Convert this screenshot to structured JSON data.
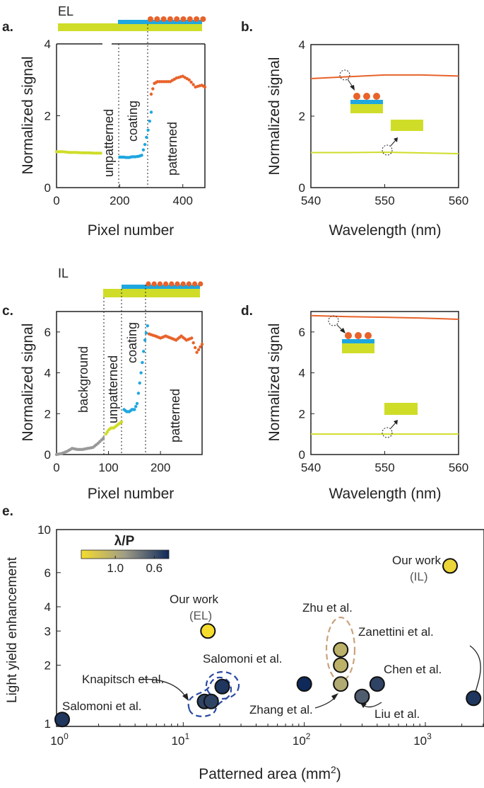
{
  "chart_data": [
    {
      "panel": "a.",
      "type": "scatter",
      "inset_label": "EL",
      "xlabel": "Pixel number",
      "ylabel": "Normalized signal",
      "xlim": [
        0,
        470
      ],
      "ylim": [
        0,
        4
      ],
      "xticks": [
        "0",
        "200",
        "400"
      ],
      "yticks": [
        "0",
        "2",
        "4"
      ],
      "regions": [
        "unpatterned",
        "coating",
        "patterned"
      ],
      "boundaries": [
        200,
        300
      ],
      "series": [
        {
          "name": "unpatterned",
          "color": "#cfdd29",
          "x": [
            0,
            20,
            40,
            60,
            80,
            100,
            120,
            140
          ],
          "y": [
            1.0,
            1.0,
            0.98,
            0.98,
            0.97,
            0.97,
            0.96,
            0.96
          ]
        },
        {
          "name": "coating",
          "color": "#1fa7df",
          "x": [
            200,
            210,
            220,
            230,
            240,
            250,
            260,
            270,
            280,
            290,
            300
          ],
          "y": [
            0.85,
            0.85,
            0.84,
            0.84,
            0.86,
            0.86,
            0.87,
            0.9,
            1.2,
            1.6,
            2.1
          ]
        },
        {
          "name": "patterned",
          "color": "#e8622a",
          "x": [
            300,
            310,
            320,
            340,
            360,
            380,
            400,
            420,
            440,
            460,
            470
          ],
          "y": [
            2.6,
            2.9,
            2.95,
            2.95,
            2.95,
            3.05,
            3.1,
            3.0,
            2.8,
            2.85,
            2.8
          ]
        }
      ]
    },
    {
      "panel": "b.",
      "type": "line",
      "xlabel": "Wavelength (nm)",
      "ylabel": "Normalized signal",
      "xlim": [
        540,
        560
      ],
      "ylim": [
        0,
        4
      ],
      "xticks": [
        "540",
        "550",
        "560"
      ],
      "yticks": [
        "0",
        "2",
        "4"
      ],
      "series": [
        {
          "name": "patterned",
          "color": "#e8622a",
          "x": [
            540,
            545,
            550,
            555,
            560
          ],
          "y": [
            3.05,
            3.1,
            3.15,
            3.15,
            3.12
          ]
        },
        {
          "name": "unpatterned",
          "color": "#cfdd29",
          "x": [
            540,
            545,
            550,
            555,
            560
          ],
          "y": [
            0.98,
            0.98,
            0.99,
            0.97,
            0.95
          ]
        }
      ]
    },
    {
      "panel": "c.",
      "type": "scatter",
      "inset_label": "IL",
      "xlabel": "Pixel number",
      "ylabel": "Normalized signal",
      "xlim": [
        0,
        280
      ],
      "ylim": [
        0,
        7
      ],
      "xticks": [
        "0",
        "100",
        "200"
      ],
      "yticks": [
        "0",
        "2",
        "4",
        "6"
      ],
      "regions": [
        "background",
        "unpatterned",
        "coating",
        "patterned"
      ],
      "boundaries": [
        93,
        127,
        175
      ],
      "series": [
        {
          "name": "background",
          "color": "#999999",
          "x": [
            0,
            10,
            20,
            30,
            40,
            50,
            60,
            70,
            80,
            90
          ],
          "y": [
            0.0,
            0.05,
            0.15,
            0.3,
            0.25,
            0.25,
            0.3,
            0.35,
            0.55,
            0.8
          ]
        },
        {
          "name": "unpatterned",
          "color": "#cfdd29",
          "x": [
            95,
            100,
            105,
            110,
            115,
            120,
            125
          ],
          "y": [
            1.0,
            1.2,
            1.3,
            1.3,
            1.4,
            1.5,
            1.6
          ]
        },
        {
          "name": "coating",
          "color": "#1fa7df",
          "x": [
            130,
            135,
            140,
            145,
            150,
            155,
            160,
            165,
            170,
            175
          ],
          "y": [
            2.2,
            2.1,
            2.1,
            2.2,
            2.2,
            2.5,
            3.5,
            4.5,
            5.6,
            6.3
          ]
        },
        {
          "name": "patterned",
          "color": "#e8622a",
          "x": [
            178,
            190,
            200,
            210,
            220,
            230,
            240,
            250,
            260,
            270,
            280
          ],
          "y": [
            5.9,
            5.8,
            5.7,
            5.8,
            5.7,
            5.6,
            5.8,
            5.6,
            5.7,
            5.0,
            5.4
          ]
        }
      ]
    },
    {
      "panel": "d.",
      "type": "line",
      "xlabel": "Wavelength (nm)",
      "ylabel": "Normalized signal",
      "xlim": [
        540,
        560
      ],
      "ylim": [
        0,
        7
      ],
      "xticks": [
        "540",
        "550",
        "560"
      ],
      "yticks": [
        "0",
        "2",
        "4",
        "6"
      ],
      "series": [
        {
          "name": "patterned",
          "color": "#e8622a",
          "x": [
            540,
            545,
            550,
            555,
            560
          ],
          "y": [
            6.8,
            6.75,
            6.72,
            6.68,
            6.62
          ]
        },
        {
          "name": "unpatterned",
          "color": "#cfdd29",
          "x": [
            540,
            545,
            550,
            555,
            560
          ],
          "y": [
            1.0,
            1.0,
            1.0,
            1.0,
            1.0
          ]
        }
      ]
    },
    {
      "panel": "e.",
      "type": "scatter",
      "xscale": "log",
      "yscale": "log",
      "xlabel": "Patterned area (mm",
      "xlabel_sup": "2",
      "xlabel_close": ")",
      "ylabel": "Light yield enhancement",
      "xlim": [
        1,
        3000
      ],
      "ylim": [
        1,
        10
      ],
      "xticks_base": [
        "10",
        "10",
        "10",
        "10"
      ],
      "xticks_exp": [
        "0",
        "1",
        "2",
        "3"
      ],
      "xtick_values": [
        1,
        10,
        100,
        1000
      ],
      "yticks": [
        "1",
        "2",
        "3",
        "4",
        "6",
        "10"
      ],
      "ytick_values": [
        1,
        2,
        3,
        4,
        6,
        10
      ],
      "colorbar": {
        "title": "λ/P",
        "ticks": [
          "1.0",
          "0.6"
        ],
        "tick_values": [
          1.0,
          0.6
        ],
        "range": [
          1.35,
          0.45
        ],
        "stops": [
          "#f5dc2e",
          "#9f9c87",
          "#0f2a5a"
        ]
      },
      "points": [
        {
          "label": "Salomoni et al.",
          "x": 1.0,
          "y": 1.05,
          "lp": 0.5
        },
        {
          "label": "Knapitsch et al.",
          "x": 15,
          "y": 1.3,
          "lp": 0.55
        },
        {
          "label": "Knapitsch et al.",
          "x": 17,
          "y": 1.3,
          "lp": 0.55
        },
        {
          "label": "Knapitsch et al.",
          "x": 21,
          "y": 1.55,
          "lp": 0.5
        },
        {
          "label": "Our work (EL)",
          "x": 16,
          "y": 3.0,
          "lp": 1.35
        },
        {
          "label": "Salomoni et al.",
          "x": 100,
          "y": 1.6,
          "lp": 0.45
        },
        {
          "label": "Zhu et al.",
          "x": 200,
          "y": 2.4,
          "lp": 1.05
        },
        {
          "label": "Zhu et al.",
          "x": 200,
          "y": 2.0,
          "lp": 1.05
        },
        {
          "label": "Zhang et al.",
          "x": 200,
          "y": 1.6,
          "lp": 1.0
        },
        {
          "label": "Liu et al.",
          "x": 300,
          "y": 1.38,
          "lp": 0.65
        },
        {
          "label": "Chen et al.",
          "x": 400,
          "y": 1.6,
          "lp": 0.55
        },
        {
          "label": "Our work (IL)",
          "x": 1600,
          "y": 6.5,
          "lp": 1.3
        },
        {
          "label": "Zanettini et al.",
          "x": 2500,
          "y": 1.35,
          "lp": 0.5
        }
      ],
      "labels": {
        "our_work": "Our work",
        "el": "(EL)",
        "il": "(IL)",
        "salomoni": "Salomoni et al.",
        "knapitsch": "Knapitsch et al.",
        "zhu": "Zhu et al.",
        "zhang": "Zhang et al.",
        "zanettini": "Zanettini et al.",
        "chen": "Chen et al.",
        "liu": "Liu et al."
      }
    }
  ]
}
